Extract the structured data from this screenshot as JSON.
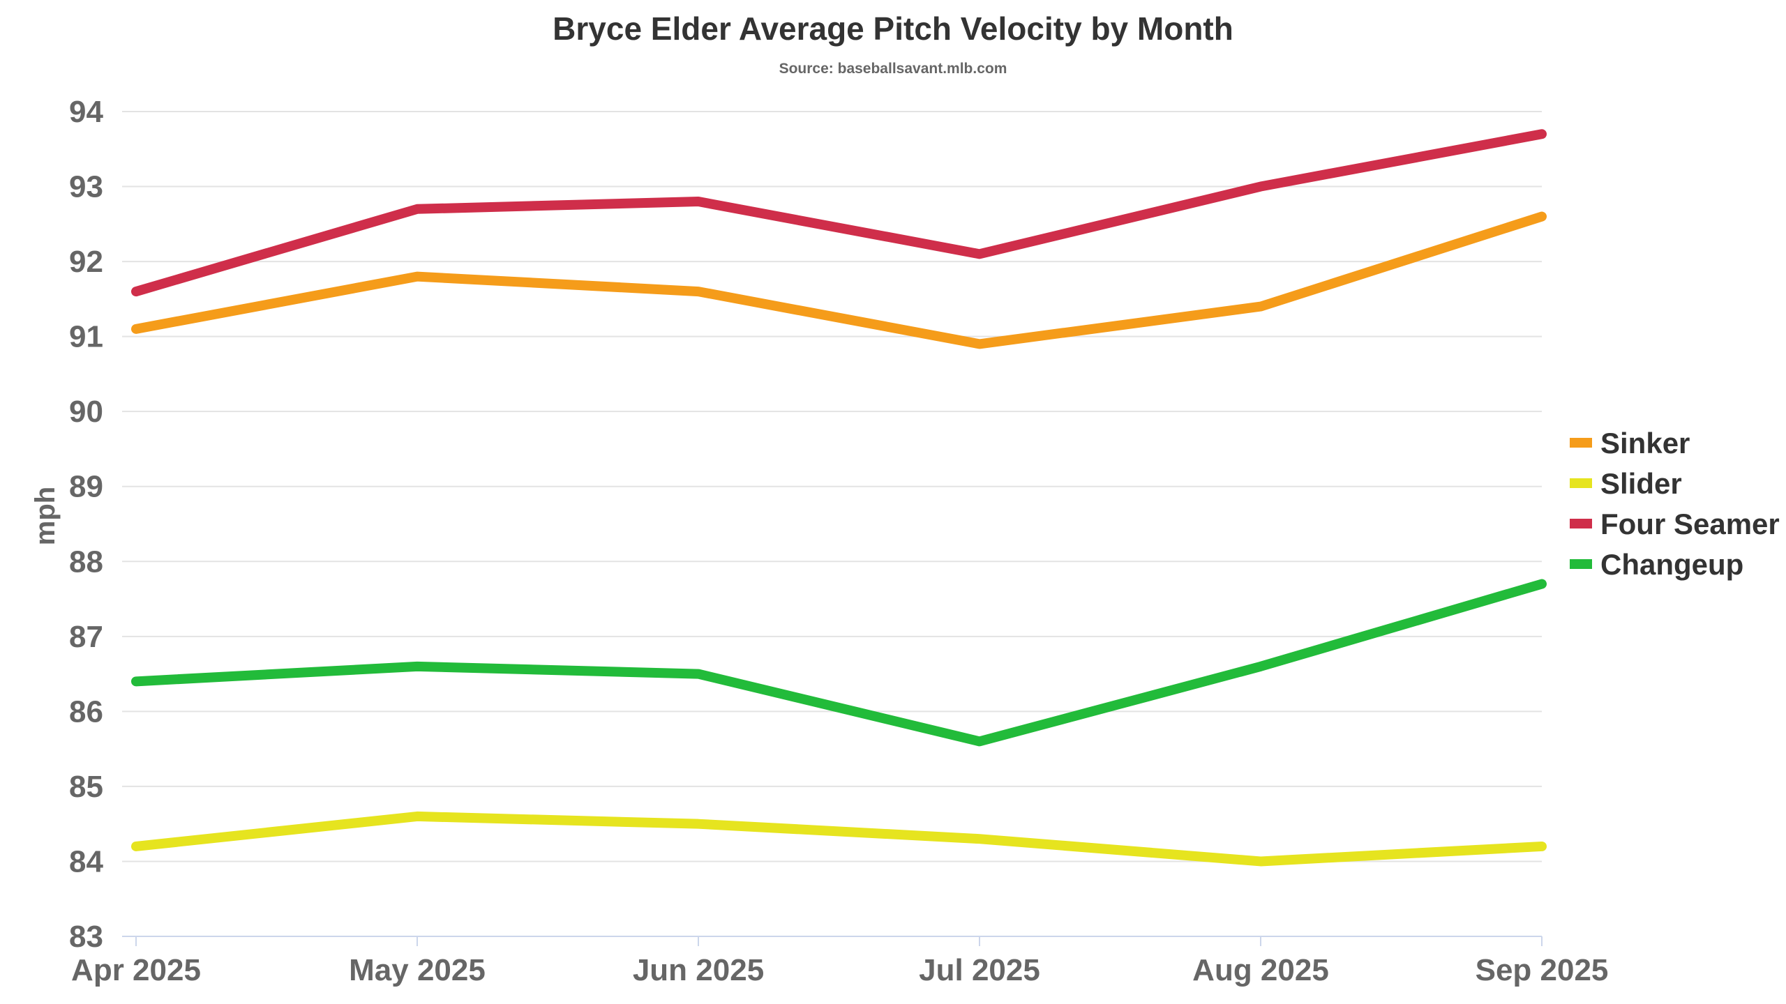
{
  "chart_data": {
    "type": "line",
    "title": "Bryce Elder Average Pitch Velocity by Month",
    "subtitle": "Source: baseballsavant.mlb.com",
    "xlabel": "",
    "ylabel": "mph",
    "categories": [
      "Apr 2025",
      "May 2025",
      "Jun 2025",
      "Jul 2025",
      "Aug 2025",
      "Sep 2025"
    ],
    "ylim": [
      83,
      94
    ],
    "yticks": [
      83,
      84,
      85,
      86,
      87,
      88,
      89,
      90,
      91,
      92,
      93,
      94
    ],
    "grid": true,
    "legend_position": "right",
    "series": [
      {
        "name": "Sinker",
        "color": "#f59c1a",
        "values": [
          91.1,
          91.8,
          91.6,
          90.9,
          91.4,
          92.6
        ]
      },
      {
        "name": "Slider",
        "color": "#e6e41f",
        "values": [
          84.2,
          84.6,
          84.5,
          84.3,
          84.0,
          84.2
        ]
      },
      {
        "name": "Four Seamer",
        "color": "#cf2e4a",
        "values": [
          91.6,
          92.7,
          92.8,
          92.1,
          93.0,
          93.7
        ]
      },
      {
        "name": "Changeup",
        "color": "#22bb3a",
        "values": [
          86.4,
          86.6,
          86.5,
          85.6,
          86.6,
          87.7
        ]
      }
    ]
  }
}
